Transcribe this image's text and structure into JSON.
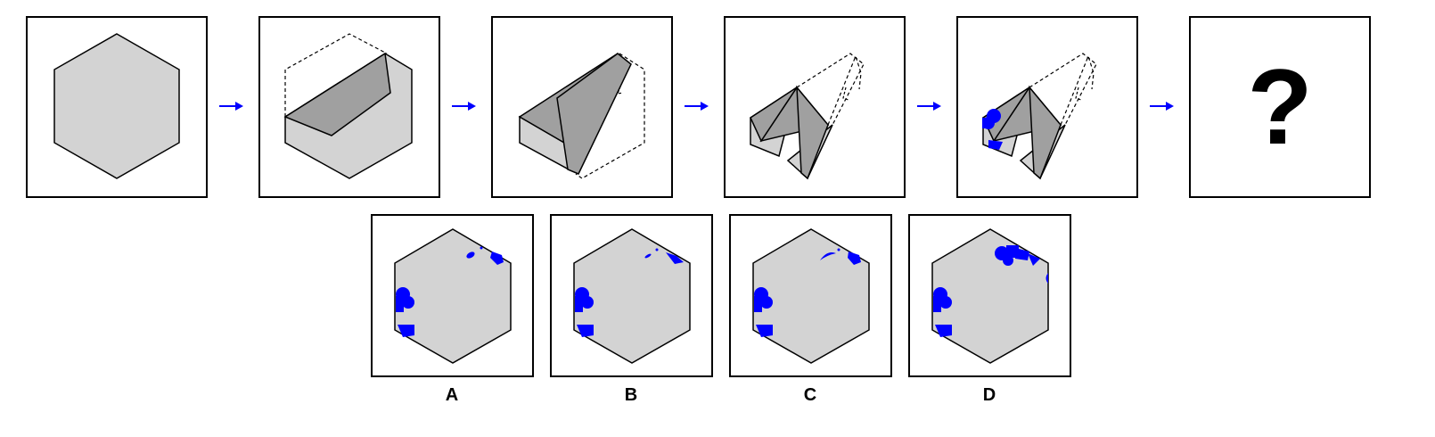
{
  "question_mark": "?",
  "colors": {
    "paper": "#d3d3d3",
    "flap": "#a0a0a0",
    "punch": "#0000ff",
    "arrow": "#0000ff",
    "line": "#000000"
  },
  "icons": {
    "step_arrow": "right-arrow-icon"
  },
  "options": [
    {
      "label": "A"
    },
    {
      "label": "B"
    },
    {
      "label": "C"
    },
    {
      "label": "D"
    }
  ]
}
